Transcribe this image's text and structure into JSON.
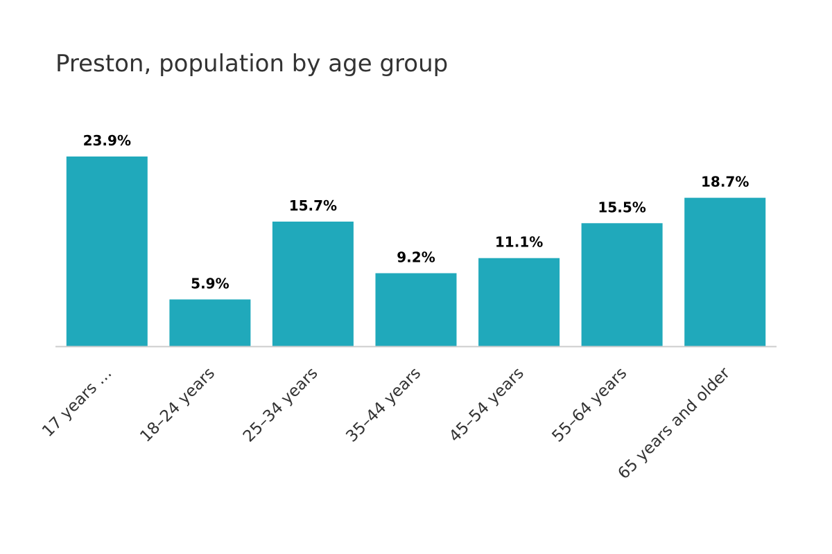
{
  "chart_data": {
    "type": "bar",
    "title": "Preston, population by age group",
    "categories": [
      "17 years …",
      "18–24 years",
      "25–34 years",
      "35–44 years",
      "45–54 years",
      "55–64 years",
      "65 years and older"
    ],
    "values": [
      23.9,
      5.9,
      15.7,
      9.2,
      11.1,
      15.5,
      18.7
    ],
    "data_labels": [
      "23.9%",
      "5.9%",
      "15.7%",
      "9.2%",
      "11.1%",
      "15.5%",
      "18.7%"
    ],
    "ylim": [
      0,
      23.9
    ],
    "grid": false,
    "legend": "none",
    "xlabel": "",
    "ylabel": ""
  },
  "colors": {
    "bar": "#20a9bb",
    "axis": "#cccccc"
  }
}
